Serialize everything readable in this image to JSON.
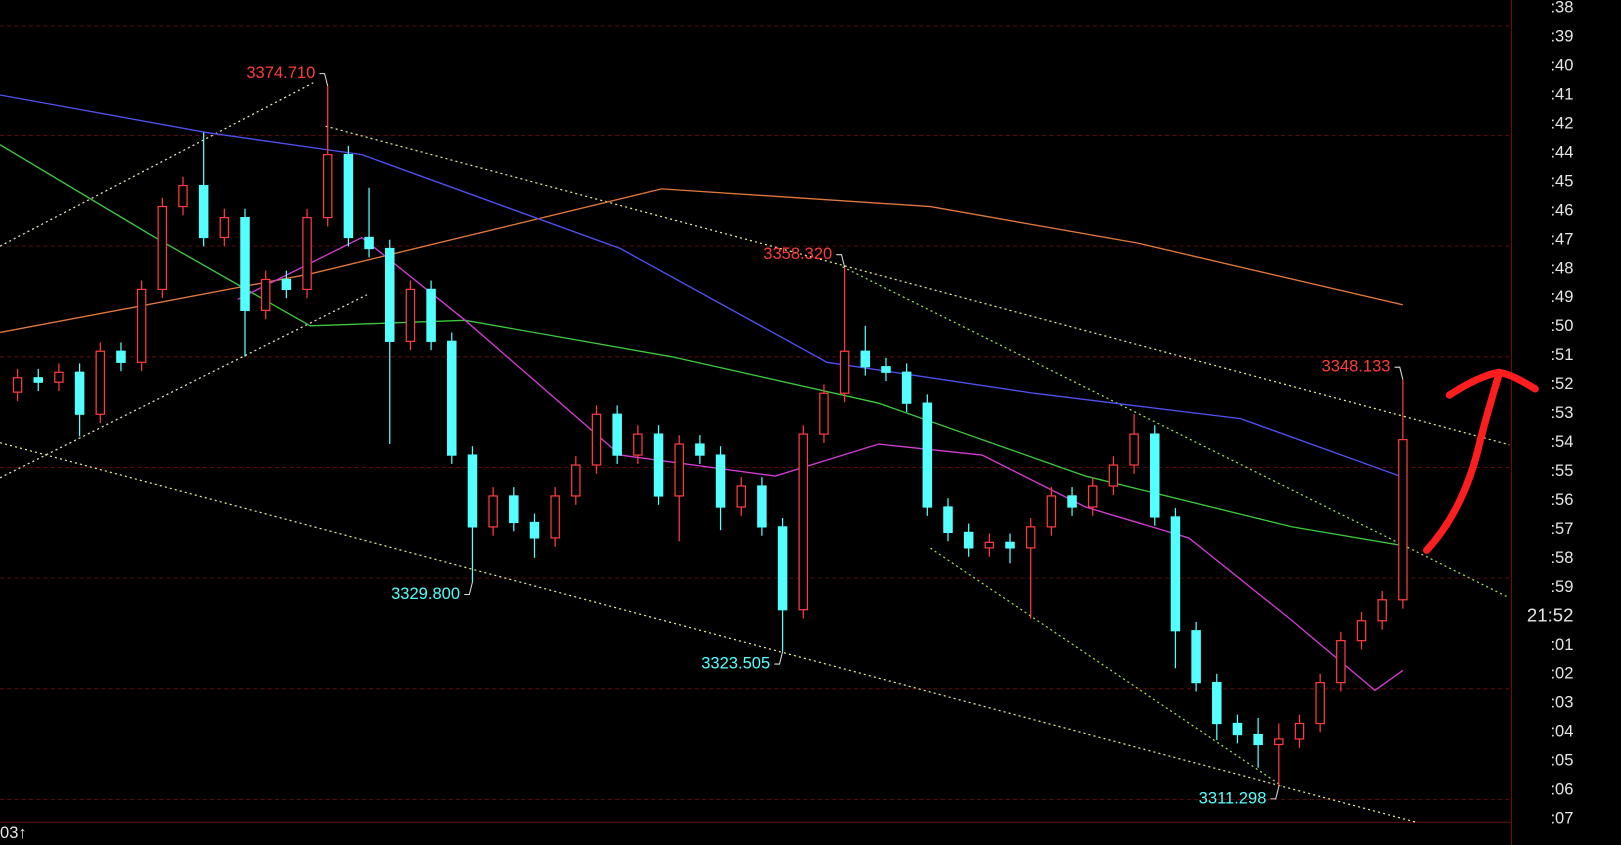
{
  "chart_data": {
    "type": "candlestick",
    "xlim": [
      -0.85,
      77.55
    ],
    "ylim": [
      3306,
      3382.5
    ],
    "up_color": "#ff3c3c",
    "down_color": "#54ffff",
    "open": [
      3347.0,
      3348.3,
      3347.9,
      3348.8,
      3345.0,
      3350.7,
      3349.7,
      3356.3,
      3363.8,
      3365.7,
      3361.0,
      3362.8,
      3354.4,
      3357.2,
      3356.3,
      3362.8,
      3368.5,
      3361.0,
      3360.0,
      3351.6,
      3356.3,
      3351.6,
      3341.3,
      3334.8,
      3337.6,
      3335.2,
      3333.8,
      3337.6,
      3340.4,
      3345.0,
      3341.3,
      3343.2,
      3337.6,
      3342.3,
      3341.3,
      3336.6,
      3338.5,
      3334.8,
      3327.3,
      3343.2,
      3346.9,
      3350.7,
      3349.3,
      3348.8,
      3346.0,
      3336.6,
      3334.3,
      3332.9,
      3333.4,
      3332.9,
      3334.8,
      3337.6,
      3336.6,
      3338.5,
      3340.4,
      3343.2,
      3335.7,
      3325.4,
      3320.7,
      3317.0,
      3316.0,
      3315.1,
      3315.6,
      3317.0,
      3320.7,
      3324.5,
      3326.3,
      3328.2
    ],
    "high": [
      3349.1,
      3349.1,
      3349.6,
      3349.6,
      3351.5,
      3351.5,
      3357.1,
      3364.6,
      3366.5,
      3370.5,
      3363.6,
      3363.6,
      3358.0,
      3358.0,
      3363.6,
      3374.71,
      3369.3,
      3365.5,
      3360.8,
      3357.1,
      3357.1,
      3352.4,
      3342.1,
      3338.4,
      3338.4,
      3336.0,
      3338.4,
      3341.2,
      3345.8,
      3345.8,
      3344.0,
      3344.0,
      3343.1,
      3343.1,
      3342.1,
      3339.3,
      3339.3,
      3335.6,
      3344.0,
      3347.7,
      3358.32,
      3353.0,
      3350.1,
      3349.6,
      3346.8,
      3337.4,
      3335.1,
      3334.2,
      3334.2,
      3335.6,
      3338.4,
      3338.4,
      3339.3,
      3341.2,
      3345.0,
      3344.0,
      3336.5,
      3326.2,
      3321.5,
      3317.8,
      3317.5,
      3317.0,
      3317.8,
      3321.5,
      3325.3,
      3327.1,
      3329.0,
      3348.133
    ],
    "low": [
      3346.2,
      3347.1,
      3347.1,
      3343.0,
      3344.2,
      3348.9,
      3348.9,
      3355.5,
      3363.0,
      3360.2,
      3360.2,
      3350.2,
      3353.6,
      3355.5,
      3355.5,
      3362.0,
      3360.2,
      3359.2,
      3342.3,
      3350.8,
      3350.8,
      3340.5,
      3329.8,
      3334.0,
      3334.4,
      3332.0,
      3333.0,
      3336.8,
      3339.6,
      3340.5,
      3340.5,
      3336.8,
      3333.5,
      3340.5,
      3334.5,
      3335.8,
      3334.0,
      3323.505,
      3326.5,
      3342.4,
      3346.1,
      3348.5,
      3348.0,
      3345.2,
      3335.8,
      3333.5,
      3332.1,
      3332.1,
      3331.5,
      3326.5,
      3334.0,
      3335.8,
      3335.8,
      3337.7,
      3339.6,
      3334.9,
      3322.0,
      3319.9,
      3315.5,
      3315.2,
      3313.0,
      3311.298,
      3314.8,
      3316.2,
      3319.9,
      3323.7,
      3325.5,
      3327.4
    ],
    "close": [
      3348.3,
      3347.9,
      3348.8,
      3345.0,
      3350.7,
      3349.7,
      3356.3,
      3363.8,
      3365.7,
      3361.0,
      3362.8,
      3354.4,
      3357.2,
      3356.3,
      3362.8,
      3368.5,
      3361.0,
      3360.0,
      3351.6,
      3356.3,
      3351.6,
      3341.3,
      3334.8,
      3337.6,
      3335.2,
      3333.8,
      3337.6,
      3340.4,
      3345.0,
      3341.3,
      3343.2,
      3337.6,
      3342.3,
      3341.3,
      3336.6,
      3338.5,
      3334.8,
      3327.3,
      3343.2,
      3346.9,
      3350.7,
      3349.3,
      3348.8,
      3346.0,
      3336.6,
      3334.3,
      3332.9,
      3333.4,
      3332.9,
      3334.8,
      3337.6,
      3336.6,
      3338.5,
      3340.4,
      3343.2,
      3335.7,
      3325.4,
      3320.7,
      3317.0,
      3316.0,
      3315.1,
      3315.6,
      3317.0,
      3320.7,
      3324.5,
      3326.3,
      3328.2,
      3342.7
    ],
    "series": [
      {
        "color": "#e0783c",
        "x": [
          -0.85,
          14.15,
          31.15,
          44.15,
          54.15,
          67
        ],
        "values": [
          3352.4,
          3357.7,
          3365.4,
          3363.8,
          3360.5,
          3354.9
        ]
      },
      {
        "color": "#5050f0",
        "x": [
          -0.85,
          9.15,
          16.65,
          29.15,
          39.15,
          49.15,
          59.15,
          67
        ],
        "values": [
          3373.9,
          3370.5,
          3368.5,
          3360.0,
          3349.7,
          3346.9,
          3344.6,
          3339.3
        ]
      },
      {
        "color": "#3cc83c",
        "x": [
          -0.85,
          6.65,
          14.15,
          21.65,
          31.65,
          41.65,
          51.65,
          61.65,
          67
        ],
        "values": [
          3369.4,
          3361.0,
          3353.0,
          3353.5,
          3350.2,
          3346.0,
          3339.4,
          3334.8,
          3333.1
        ]
      },
      {
        "color": "#d23cd2",
        "x": [
          10.65,
          16.65,
          21.65,
          29.15,
          36.65,
          41.65,
          46.65,
          51.65,
          56.65,
          61.65,
          65.65,
          67
        ],
        "values": [
          3355.4,
          3361.0,
          3353.5,
          3341.3,
          3339.4,
          3342.3,
          3341.3,
          3336.6,
          3333.8,
          3326.3,
          3320.0,
          3321.8
        ]
      }
    ],
    "annotations": [
      {
        "index": 15,
        "kind": "high",
        "value": 3374.71,
        "label": "3374.710"
      },
      {
        "index": 22,
        "kind": "low",
        "value": 3329.8,
        "label": "3329.800"
      },
      {
        "index": 37,
        "kind": "low",
        "value": 3323.505,
        "label": "3323.505"
      },
      {
        "index": 40,
        "kind": "high",
        "value": 3358.32,
        "label": "3358.320"
      },
      {
        "index": 61,
        "kind": "low",
        "value": 3311.298,
        "label": "3311.298"
      },
      {
        "index": 67,
        "kind": "high",
        "value": 3348.133,
        "label": "3348.133"
      }
    ],
    "right_labels": [
      ":38",
      ":39",
      ":40",
      ":41",
      ":42",
      ":44",
      ":45",
      ":46",
      ":47",
      ":48",
      ":49",
      ":50",
      ":51",
      ":52",
      ":53",
      ":54",
      ":55",
      ":56",
      ":57",
      ":58",
      ":59",
      "21:52",
      ":01",
      ":02",
      ":03",
      ":04",
      ":05",
      ":06",
      ":07"
    ],
    "corner_label": "03↑"
  }
}
